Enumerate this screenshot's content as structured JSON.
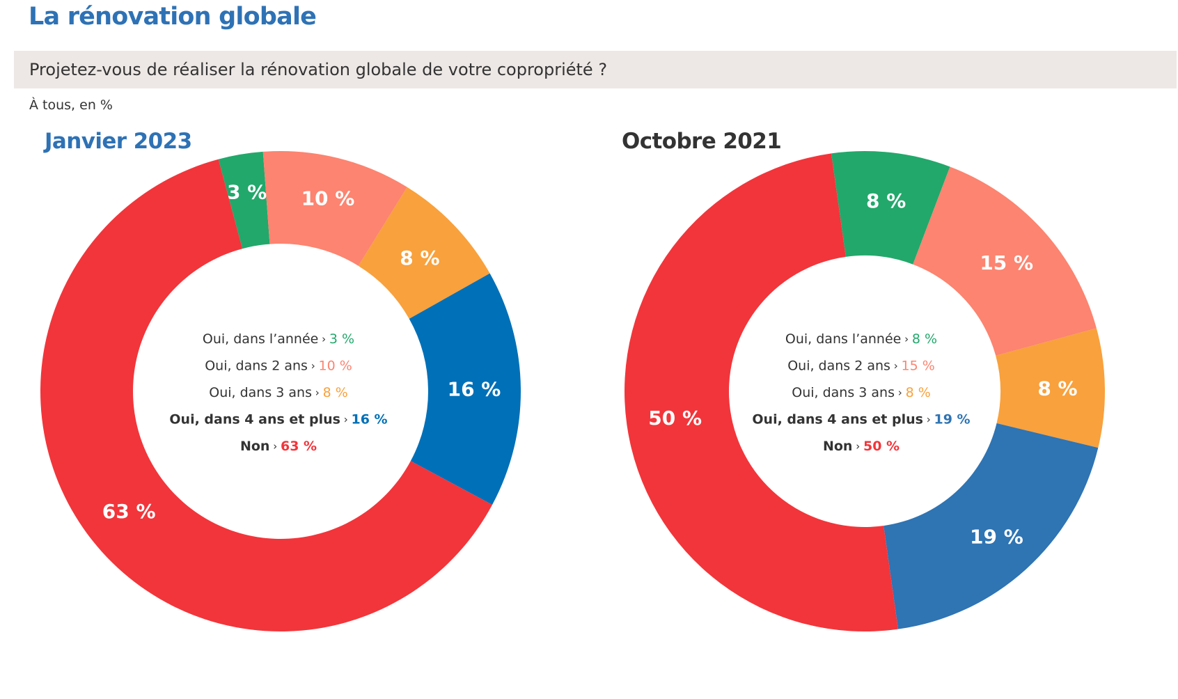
{
  "header": {
    "title": "La rénovation globale",
    "question": "Projetez-vous de réaliser la rénovation globale de votre copropriété ?",
    "base": "À tous, en %"
  },
  "colors": {
    "title_blue": "#2e72b5",
    "green": "#22a86b",
    "salmon": "#fc8470",
    "orange": "#f9a13c",
    "blue": "#0070b8",
    "blue_2021": "#2f74b3",
    "red": "#f2353a",
    "dark_text": "#333333"
  },
  "chart_data": [
    {
      "type": "pie",
      "variant": "donut",
      "title": "Janvier 2023",
      "categories": [
        "Oui, dans l’année",
        "Oui, dans 2 ans",
        "Oui, dans 3 ans",
        "Oui, dans 4 ans et plus",
        "Non"
      ],
      "values": [
        3,
        10,
        8,
        16,
        63
      ],
      "labels": [
        "3 %",
        "10 %",
        "8 %",
        "16 %",
        "63 %"
      ],
      "colors": [
        "#22a86b",
        "#fc8470",
        "#f9a13c",
        "#0070b8",
        "#f2353a"
      ],
      "bold_legend": [
        false,
        false,
        false,
        true,
        true
      ],
      "legend_placement": "center"
    },
    {
      "type": "pie",
      "variant": "donut",
      "title": "Octobre 2021",
      "categories": [
        "Oui, dans l’année",
        "Oui, dans 2 ans",
        "Oui, dans 3 ans",
        "Oui, dans 4 ans et plus",
        "Non"
      ],
      "values": [
        8,
        15,
        8,
        19,
        50
      ],
      "labels": [
        "8 %",
        "15 %",
        "8 %",
        "19 %",
        "50 %"
      ],
      "colors": [
        "#22a86b",
        "#fc8470",
        "#f9a13c",
        "#2f74b3",
        "#f2353a"
      ],
      "bold_legend": [
        false,
        false,
        false,
        true,
        true
      ],
      "legend_placement": "center"
    }
  ]
}
